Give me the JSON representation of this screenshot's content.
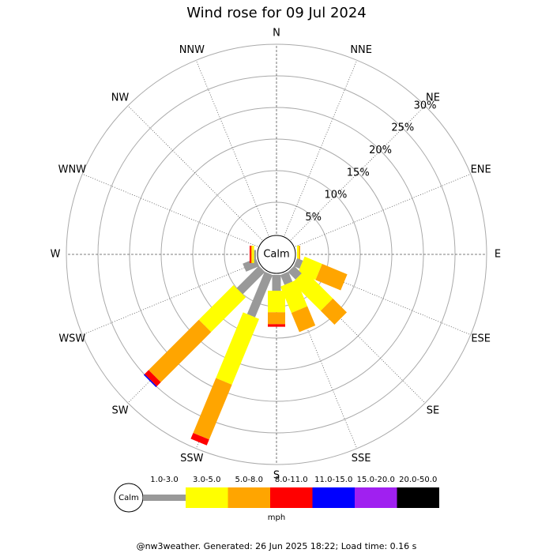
{
  "chart_data": {
    "type": "wind_rose",
    "title": "Wind rose for 09 Jul 2024",
    "directions": [
      "N",
      "NNE",
      "NE",
      "ENE",
      "E",
      "ESE",
      "SE",
      "SSE",
      "S",
      "SSW",
      "SW",
      "WSW",
      "W",
      "WNW",
      "NW",
      "NNW"
    ],
    "calm_label": "Calm",
    "unit": "mph",
    "rlim": [
      0,
      30
    ],
    "rticks": [
      {
        "value": 5,
        "label": "5%"
      },
      {
        "value": 10,
        "label": "10%"
      },
      {
        "value": 15,
        "label": "15%"
      },
      {
        "value": 20,
        "label": "20%"
      },
      {
        "value": 25,
        "label": "25%"
      },
      {
        "value": 30,
        "label": "30%"
      }
    ],
    "series": [
      {
        "name": "1.0-3.0",
        "color": "#999999",
        "values": [
          0,
          0,
          0,
          0,
          0,
          1,
          1.7,
          1.7,
          2.5,
          7.25,
          5,
          2.25,
          0.3,
          0,
          0,
          0
        ]
      },
      {
        "name": "3.0-5.0",
        "color": "#ffff00",
        "values": [
          0,
          0,
          0,
          0,
          0.3,
          3,
          6.3,
          4.5,
          3.4,
          11.25,
          7.75,
          0,
          0.3,
          0,
          0,
          0
        ]
      },
      {
        "name": "5.0-8.0",
        "color": "#ffa500",
        "values": [
          0,
          0,
          0,
          0,
          0.2,
          4.3,
          3.1,
          3.3,
          1.9,
          9.4,
          11.25,
          0,
          0.2,
          0,
          0,
          0
        ]
      },
      {
        "name": "8.0-11.0",
        "color": "#ff0000",
        "values": [
          0,
          0,
          0,
          0,
          0,
          0,
          0,
          0,
          0.4,
          1,
          0.9,
          0,
          0.2,
          0,
          0,
          0
        ]
      },
      {
        "name": "11.0-15.0",
        "color": "#0000ff",
        "values": [
          0,
          0,
          0,
          0,
          0,
          0,
          0,
          0,
          0,
          0,
          0.2,
          0,
          0,
          0,
          0,
          0
        ]
      },
      {
        "name": "15.0-20.0",
        "color": "#a020f0",
        "values": [
          0,
          0,
          0,
          0,
          0,
          0,
          0,
          0,
          0,
          0,
          0,
          0,
          0,
          0,
          0,
          0
        ]
      },
      {
        "name": "20.0-50.0",
        "color": "#000000",
        "values": [
          0,
          0,
          0,
          0,
          0,
          0,
          0,
          0,
          0,
          0,
          0,
          0,
          0,
          0,
          0,
          0
        ]
      }
    ]
  },
  "footer": "@nw3weather. Generated: 26 Jun 2025 18:22; Load time: 0.16 s"
}
